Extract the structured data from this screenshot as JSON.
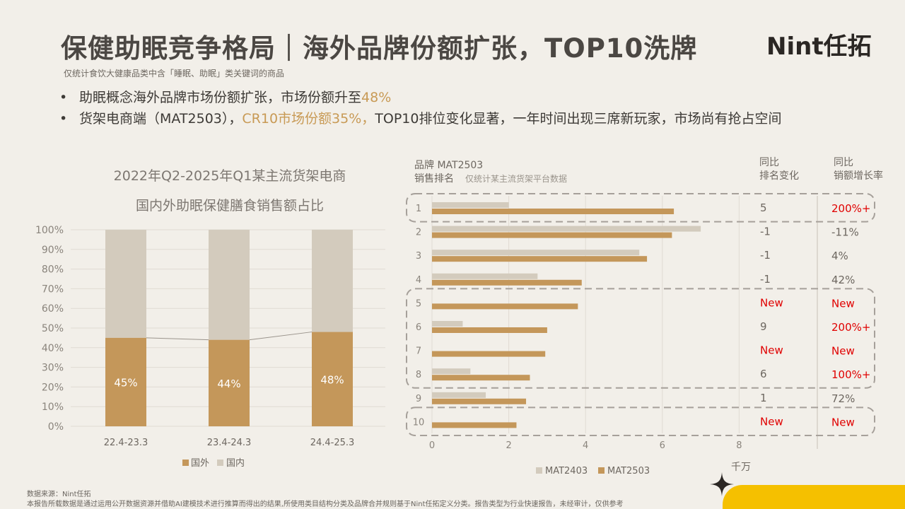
{
  "header": {
    "title": "保健助眠竞争格局｜海外品牌份额扩张，TOP10洗牌",
    "logo": "Nint任拓",
    "note": "仅统计食饮大健康品类中含「睡眠、助眠」类关键词的商品"
  },
  "bullets": [
    {
      "pre": "助眠概念海外品牌市场份额扩张，市场份额升至",
      "hl": "48%",
      "post": ""
    },
    {
      "pre": "货架电商端（MAT2503），",
      "hl": "CR10市场份额35%，",
      "post": "TOP10排位变化显著，一年时间出现三席新玩家，市场尚有抢占空间"
    }
  ],
  "left_chart_title": [
    "2022年Q2-2025年Q1某主流货架电商",
    "国内外助眠保健膳食销售额占比"
  ],
  "right_header": {
    "col1_line1": "品牌 MAT2503",
    "col1_line2": "销售排名",
    "subnote": "仅统计某主流货架平台数据",
    "col2_line1": "同比",
    "col2_line2": "排名变化",
    "col3_line1": "同比",
    "col3_line2": "销额增长率"
  },
  "footer": {
    "source": "数据来源：Nint任拓",
    "disclaimer": "本报告所载数据是通过运用公开数据资源并借助AI建模技术进行推算而得出的结果,所使用类目结构分类及品牌合并规则基于Nint任拓定义分类。报告类型为行业快速报告，未经审计，仅供参考"
  },
  "colors": {
    "foreign": "#c4975a",
    "domestic": "#d3cbbd",
    "accent": "#e00000",
    "yellow": "#f5c000"
  },
  "chart_data": [
    {
      "type": "bar",
      "stacked": true,
      "title": "2022年Q2-2025年Q1某主流货架电商 国内外助眠保健膳食销售额占比",
      "categories": [
        "22.4-23.3",
        "23.4-24.3",
        "24.4-25.3"
      ],
      "series": [
        {
          "name": "国外",
          "values": [
            45,
            44,
            48
          ],
          "labels": [
            "45%",
            "44%",
            "48%"
          ]
        },
        {
          "name": "国内",
          "values": [
            55,
            56,
            52
          ]
        }
      ],
      "yticks": [
        "0%",
        "10%",
        "20%",
        "30%",
        "40%",
        "50%",
        "60%",
        "70%",
        "80%",
        "90%",
        "100%"
      ],
      "ylim": [
        0,
        100
      ]
    },
    {
      "type": "bar",
      "orientation": "horizontal",
      "categories": [
        "1",
        "2",
        "3",
        "4",
        "5",
        "6",
        "7",
        "8",
        "9",
        "10"
      ],
      "series": [
        {
          "name": "MAT2403",
          "values": [
            2.0,
            7.0,
            5.4,
            2.75,
            0,
            0.8,
            0,
            1.0,
            1.4,
            0
          ]
        },
        {
          "name": "MAT2503",
          "values": [
            6.3,
            6.25,
            5.6,
            3.9,
            3.8,
            3.0,
            2.95,
            2.55,
            2.45,
            2.2
          ]
        }
      ],
      "rank_change": [
        "5",
        "-1",
        "-1",
        "-1",
        "New",
        "9",
        "New",
        "6",
        "1",
        "New"
      ],
      "growth": [
        "200%+",
        "-11%",
        "4%",
        "42%",
        "New",
        "200%+",
        "New",
        "100%+",
        "72%",
        "New"
      ],
      "xticks": [
        "0",
        "2",
        "4",
        "6",
        "8"
      ],
      "xlim": [
        0,
        8
      ],
      "unit": "千万"
    }
  ]
}
